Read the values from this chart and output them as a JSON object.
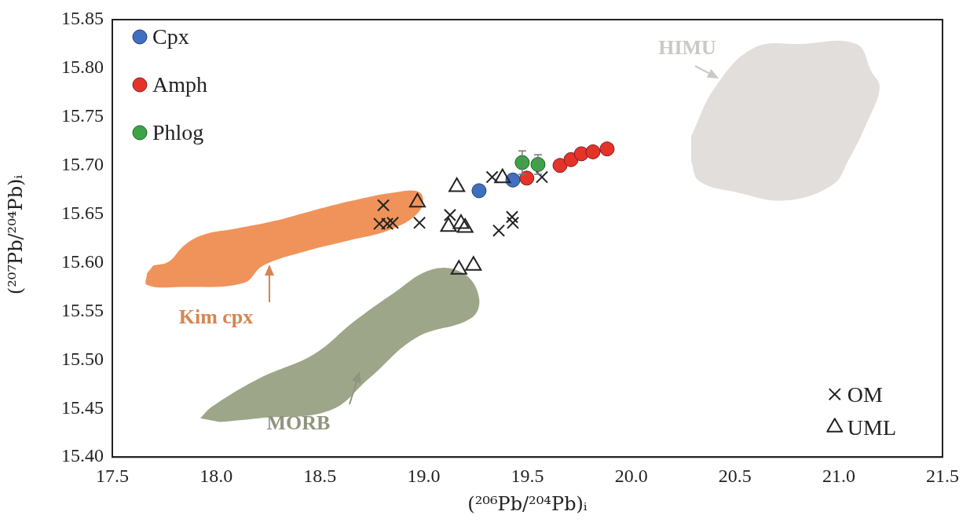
{
  "chart_data": {
    "type": "scatter",
    "xlabel": "(²⁰⁶Pb/²⁰⁴Pb)ᵢ",
    "ylabel": "(²⁰⁷Pb/²⁰⁴Pb)ᵢ",
    "xlim": [
      17.5,
      21.5
    ],
    "xticks": [
      17.5,
      {
        "value": 18,
        "label": "18.0"
      },
      18.5,
      {
        "value": 19,
        "label": "19.0"
      },
      19.5,
      {
        "value": 20,
        "label": "20.0"
      },
      20.5,
      {
        "value": 21,
        "label": "21.0"
      },
      21.5
    ],
    "ylim": [
      15.4,
      15.85
    ],
    "yticks": [
      {
        "value": 15.4,
        "label": "15.40"
      },
      15.45,
      {
        "value": 15.5,
        "label": "15.50"
      },
      15.55,
      {
        "value": 15.6,
        "label": "15.60"
      },
      15.65,
      {
        "value": 15.7,
        "label": "15.70"
      },
      15.75,
      {
        "value": 15.8,
        "label": "15.80"
      },
      15.85
    ],
    "grid": false,
    "legend": "top left",
    "series": [
      {
        "type": "area",
        "name": "Kim cpx",
        "color": "#f0935a",
        "x": [
          17.667,
          17.667,
          17.829,
          18.132,
          18.227,
          18.435,
          18.624,
          18.851,
          18.983,
          18.983,
          18.851,
          18.662,
          18.473,
          18.283,
          18.094,
          17.943,
          17.848,
          17.772,
          17.697
        ],
        "values": [
          15.589,
          15.577,
          15.575,
          15.579,
          15.597,
          15.612,
          15.622,
          15.635,
          15.654,
          15.672,
          15.672,
          15.664,
          15.654,
          15.643,
          15.635,
          15.629,
          15.618,
          15.601,
          15.597
        ]
      },
      {
        "type": "area",
        "name": "MORB",
        "color": "#9ea68a",
        "x": [
          17.924,
          17.981,
          18.208,
          18.473,
          18.662,
          18.851,
          19.04,
          19.192,
          19.267,
          19.229,
          18.965,
          18.737,
          18.548,
          18.208,
          18.018
        ],
        "values": [
          15.44,
          15.452,
          15.481,
          15.506,
          15.539,
          15.568,
          15.593,
          15.589,
          15.564,
          15.543,
          15.523,
          15.481,
          15.448,
          15.44,
          15.436
        ]
      },
      {
        "type": "area",
        "name": "HIMU",
        "color": "#e2dedb",
        "x": [
          20.289,
          20.403,
          20.592,
          20.819,
          21.084,
          21.159,
          21.197,
          21.14,
          21.046,
          20.97,
          20.743,
          20.516,
          20.327,
          20.289
        ],
        "values": [
          15.73,
          15.78,
          15.821,
          15.825,
          15.825,
          15.796,
          15.78,
          15.746,
          15.705,
          15.68,
          15.664,
          15.672,
          15.684,
          15.705
        ]
      },
      {
        "name": "OM",
        "marker": "cross",
        "color": "#222222",
        "x": [
          18.806,
          18.787,
          18.825,
          18.851,
          18.98,
          19.127,
          19.426,
          19.43,
          19.362,
          19.33,
          19.57
        ],
        "values": [
          15.659,
          15.64,
          15.64,
          15.641,
          15.641,
          15.649,
          15.647,
          15.641,
          15.633,
          15.688,
          15.688
        ]
      },
      {
        "name": "UML",
        "marker": "triangle",
        "color": "#222222",
        "x": [
          19.16,
          18.97,
          19.38,
          19.12,
          19.2,
          19.18,
          19.17,
          19.24
        ],
        "values": [
          15.678,
          15.662,
          15.687,
          15.637,
          15.636,
          15.64,
          15.593,
          15.597
        ]
      },
      {
        "name": "Cpx",
        "marker": "circle",
        "color": "#3f6fbf",
        "x": [
          19.267,
          19.43
        ],
        "values": [
          15.674,
          15.685
        ]
      },
      {
        "name": "Amph",
        "marker": "circle",
        "color": "#e5332a",
        "x": [
          19.497,
          19.657,
          19.71,
          19.76,
          19.816,
          19.884
        ],
        "values": [
          15.687,
          15.7,
          15.706,
          15.712,
          15.714,
          15.717
        ]
      },
      {
        "name": "Phlog",
        "marker": "circle",
        "color": "#3aa545",
        "x": [
          19.475,
          19.551
        ],
        "values": [
          15.703,
          15.701
        ],
        "errors": [
          0.012,
          0.01
        ]
      }
    ]
  }
}
